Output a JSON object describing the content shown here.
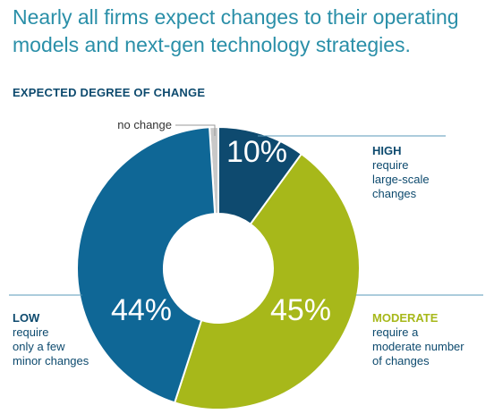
{
  "headline": "Nearly all firms expect changes to their operating models and next-gen technology strategies.",
  "subhead": "EXPECTED DEGREE OF CHANGE",
  "chart_data": {
    "type": "pie",
    "style": "donut",
    "title": "EXPECTED DEGREE OF CHANGE",
    "slices": [
      {
        "label": "no change",
        "value": 1,
        "value_label": "",
        "color": "#c8c8c8"
      },
      {
        "label": "HIGH",
        "value": 10,
        "value_label": "10%",
        "color": "#0e4a6f",
        "description": [
          "require",
          "large-scale",
          "changes"
        ]
      },
      {
        "label": "MODERATE",
        "value": 45,
        "value_label": "45%",
        "color": "#a7b81a",
        "description": [
          "require a",
          "moderate number",
          "of changes"
        ]
      },
      {
        "label": "LOW",
        "value": 44,
        "value_label": "44%",
        "color": "#0f6796",
        "description": [
          "require",
          "only a few",
          "minor changes"
        ]
      }
    ],
    "label_colors": {
      "high_title": "#0d4a6e",
      "moderate_title": "#a7b81a",
      "low_title": "#0d4a6e",
      "leader_line": "#5a9ab8"
    }
  }
}
